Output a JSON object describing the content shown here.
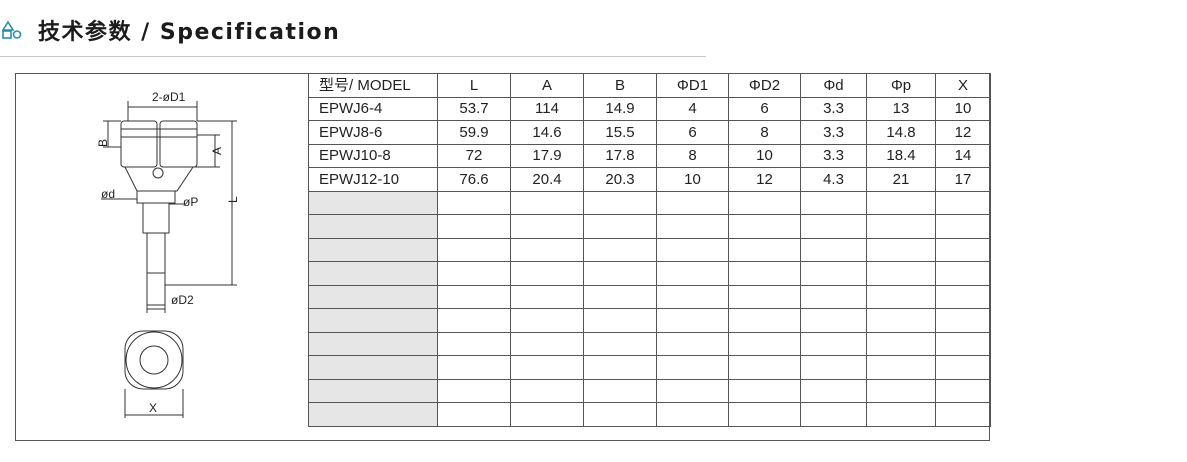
{
  "header": {
    "title": "技术参数 / Specification"
  },
  "drawing": {
    "labels": [
      "2-øD1",
      "B",
      "A",
      "ød",
      "øP",
      "L",
      "øD2",
      "X"
    ]
  },
  "table": {
    "columns": [
      "型号/ MODEL",
      "L",
      "A",
      "B",
      "ΦD1",
      "ΦD2",
      "Φd",
      "Φp",
      "X"
    ],
    "rows": [
      [
        "EPWJ6-4",
        "53.7",
        "114",
        "14.9",
        "4",
        "6",
        "3.3",
        "13",
        "10"
      ],
      [
        "EPWJ8-6",
        "59.9",
        "14.6",
        "15.5",
        "6",
        "8",
        "3.3",
        "14.8",
        "12"
      ],
      [
        "EPWJ10-8",
        "72",
        "17.9",
        "17.8",
        "8",
        "10",
        "3.3",
        "18.4",
        "14"
      ],
      [
        "EPWJ12-10",
        "76.6",
        "20.4",
        "20.3",
        "10",
        "12",
        "4.3",
        "21",
        "17"
      ]
    ]
  }
}
